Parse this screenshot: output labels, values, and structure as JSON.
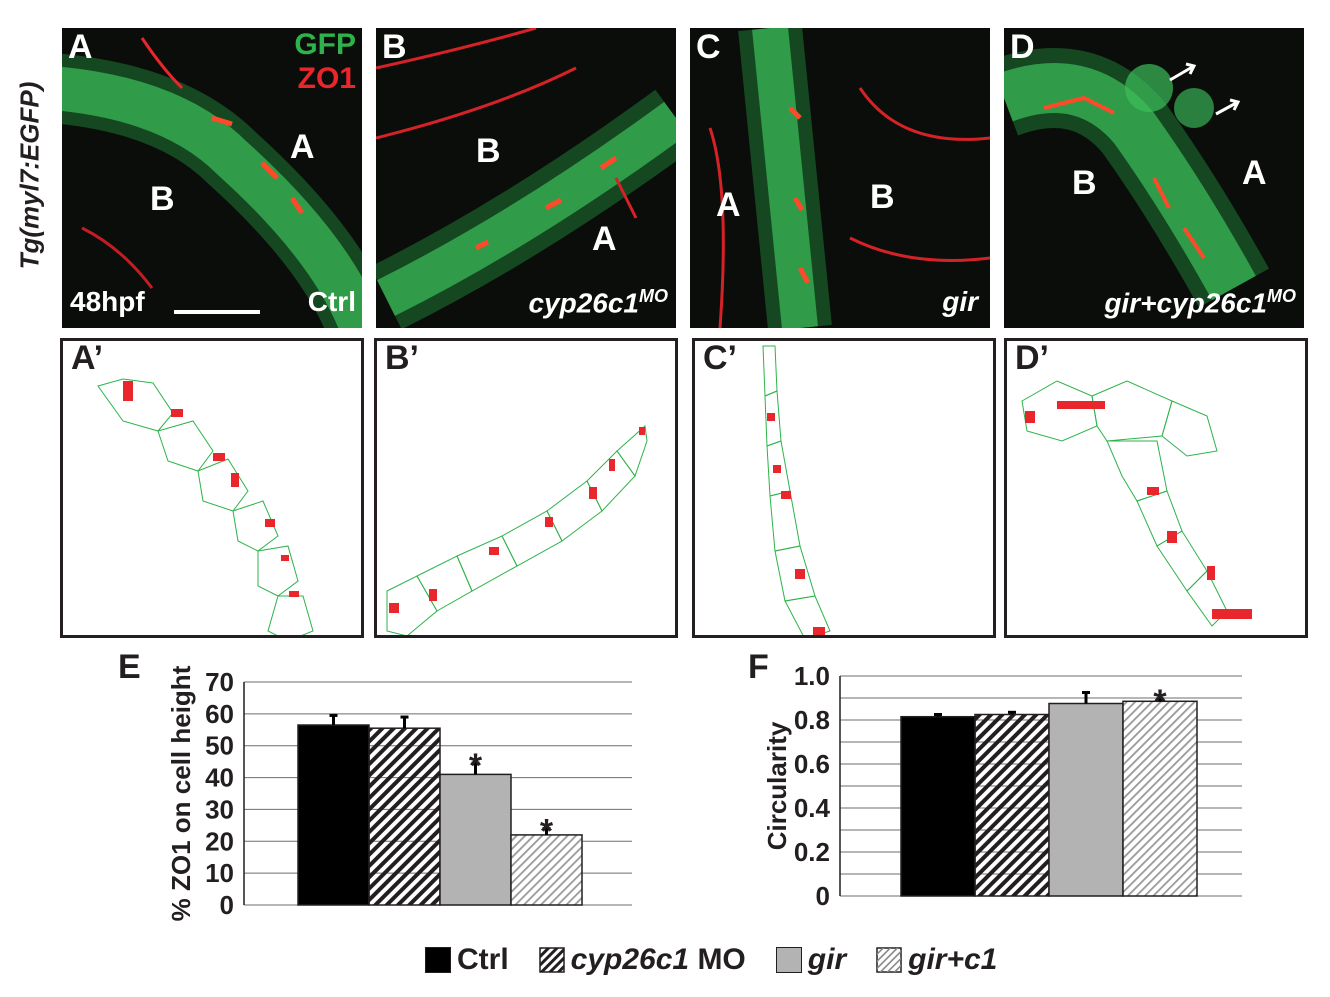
{
  "figure": {
    "side_label": "Tg(myl7:EGFP)",
    "panels": [
      {
        "letter": "A",
        "regions": [
          "A",
          "B"
        ],
        "caption": "Ctrl",
        "time": "48hpf",
        "channels": [
          "GFP",
          "ZO1"
        ]
      },
      {
        "letter": "B",
        "regions": [
          "B",
          "A"
        ],
        "caption_main": "cyp26c1",
        "caption_sup": "MO"
      },
      {
        "letter": "C",
        "regions": [
          "A",
          "B"
        ],
        "caption": "gir"
      },
      {
        "letter": "D",
        "regions": [
          "B",
          "A"
        ],
        "caption_main": "gir+cyp26c1",
        "caption_sup": "MO"
      }
    ],
    "trace_panels": [
      "A’",
      "B’",
      "C’",
      "D’"
    ],
    "colors": {
      "gfp": "#2db34a",
      "zo1": "#e8262b",
      "ctrl": "#000000",
      "gir": "#b3b3b3"
    }
  },
  "chart_data": [
    {
      "panel": "E",
      "type": "bar",
      "categories": [
        "Ctrl",
        "cyp26c1 MO",
        "gir",
        "gir+c1"
      ],
      "values": [
        56.5,
        55.5,
        41,
        22
      ],
      "errors": [
        3,
        3.5,
        3.5,
        2
      ],
      "significant": [
        false,
        false,
        true,
        true
      ],
      "ylabel": "% ZO1 on cell height",
      "ylim": [
        0,
        70
      ],
      "yticks": [
        "0",
        "10",
        "20",
        "30",
        "40",
        "50",
        "60",
        "70"
      ],
      "grid": true
    },
    {
      "panel": "F",
      "type": "bar",
      "categories": [
        "Ctrl",
        "cyp26c1 MO",
        "gir",
        "gir+c1"
      ],
      "values": [
        0.815,
        0.825,
        0.875,
        0.885
      ],
      "errors": [
        0.01,
        0.01,
        0.05,
        0.01
      ],
      "significant": [
        false,
        false,
        false,
        true
      ],
      "ylabel": "Circularity",
      "ylim": [
        0,
        1.0
      ],
      "yticks": [
        "0",
        "0.2",
        "0.4",
        "0.6",
        "0.8",
        "1.0"
      ],
      "grid": true
    }
  ],
  "legend": [
    {
      "label_main": "Ctrl",
      "label_suffix": "",
      "italic": false,
      "pattern": "solid-black"
    },
    {
      "label_main": "cyp26c1",
      "label_suffix": " MO",
      "italic": true,
      "pattern": "hatch-bold"
    },
    {
      "label_main": "gir",
      "label_suffix": "",
      "italic": true,
      "pattern": "solid-gray"
    },
    {
      "label_main": "gir+c1",
      "label_suffix": "",
      "italic": true,
      "pattern": "hatch-light"
    }
  ],
  "star": "*"
}
